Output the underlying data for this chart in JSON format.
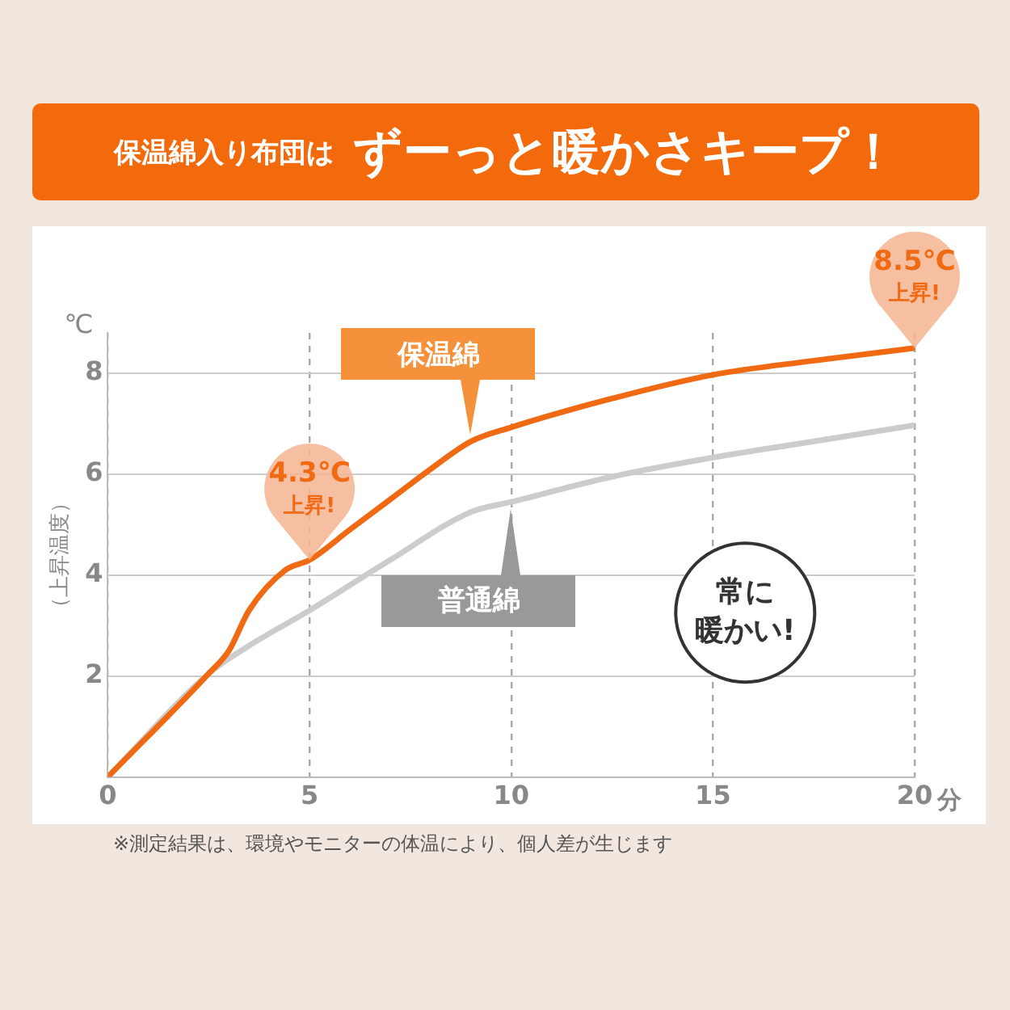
{
  "chart_data": {
    "type": "line",
    "title": "保温綿入り布団は ずーっと暖かさキープ！",
    "xlabel": "分",
    "ylabel": "（上昇温度）",
    "xlim": [
      0,
      20
    ],
    "xticks": [
      0,
      5,
      10,
      15,
      20
    ],
    "ylim": [
      0,
      8.8
    ],
    "yticks": [
      2,
      4,
      6,
      8
    ],
    "grid": true,
    "legend": false,
    "marker": "none",
    "line_style": "solid",
    "series": [
      {
        "name": "保温綿",
        "color": "#f06a14",
        "x": [
          0,
          2.5,
          3,
          3.5,
          4.4,
          5,
          6,
          7,
          8,
          9,
          10,
          12.5,
          15,
          17.5,
          20
        ],
        "values": [
          0,
          2.05,
          2.5,
          3.3,
          4.1,
          4.3,
          4.9,
          5.5,
          6.1,
          6.65,
          6.93,
          7.5,
          7.97,
          8.25,
          8.5
        ]
      },
      {
        "name": "普通綿",
        "color": "#cccccc",
        "x": [
          0,
          2.5,
          3.5,
          5,
          7,
          9,
          10,
          12.5,
          15,
          17.5,
          20
        ],
        "values": [
          0,
          2.05,
          2.6,
          3.3,
          4.3,
          5.25,
          5.45,
          5.95,
          6.33,
          6.65,
          6.97
        ]
      }
    ],
    "annotations": [
      "℃",
      {
        "text": "4.3℃\n上昇!",
        "x": 5,
        "y": 4.3
      },
      {
        "text": "8.5℃\n上昇!",
        "x": 20,
        "y": 8.5
      },
      "常に暖かい!",
      "※測定結果は、環境やモニターの体温により、個人差が生じます"
    ]
  }
}
